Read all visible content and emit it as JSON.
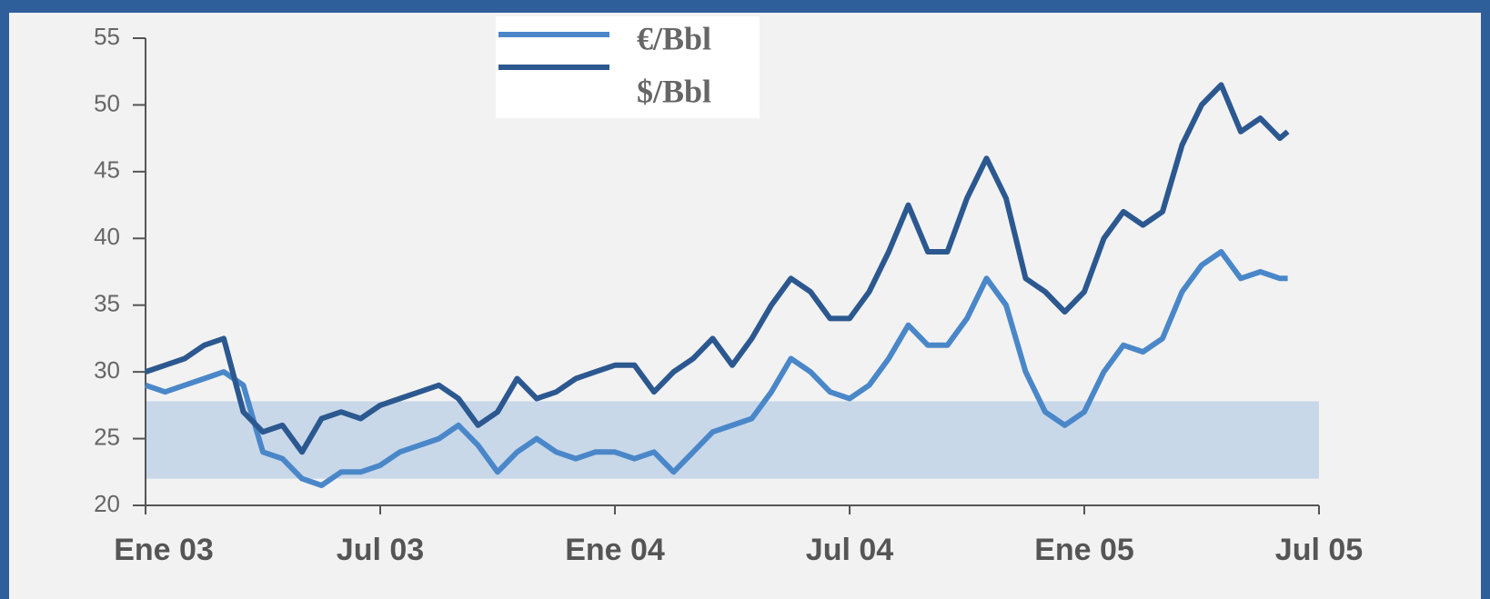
{
  "chart_data": {
    "type": "line",
    "x": [
      0,
      0.5,
      1,
      1.5,
      2,
      2.5,
      3,
      3.5,
      4,
      4.5,
      5,
      5.5,
      6,
      6.5,
      7,
      7.5,
      8,
      8.5,
      9,
      9.5,
      10,
      10.5,
      11,
      11.5,
      12,
      12.5,
      13,
      13.5,
      14,
      14.5,
      15,
      15.5,
      16,
      16.5,
      17,
      17.5,
      18,
      18.5,
      19,
      19.5,
      20,
      20.5,
      21,
      21.5,
      22,
      22.5,
      23,
      23.5,
      24,
      24.5,
      25,
      25.5,
      26,
      26.5,
      27,
      27.5,
      28,
      28.5,
      29,
      29.2
    ],
    "series": [
      {
        "name": "€/Bbl",
        "color": "#4a87c9",
        "values": [
          29,
          28.5,
          29,
          29.5,
          30,
          29,
          24,
          23.5,
          22,
          21.5,
          22.5,
          22.5,
          23,
          24,
          24.5,
          25,
          26,
          24.5,
          22.5,
          24,
          25,
          24,
          23.5,
          24,
          24,
          23.5,
          24,
          22.5,
          24,
          25.5,
          26,
          26.5,
          28.5,
          31,
          30,
          28.5,
          28,
          29,
          31,
          33.5,
          32,
          32,
          34,
          37,
          35,
          30,
          27,
          26,
          27,
          30,
          32,
          31.5,
          32.5,
          36,
          38,
          39,
          37,
          37.5,
          37,
          37
        ]
      },
      {
        "name": "$/Bbl",
        "color": "#2c5890",
        "values": [
          30,
          30.5,
          31,
          32,
          32.5,
          27,
          25.5,
          26,
          24,
          26.5,
          27,
          26.5,
          27.5,
          28,
          28.5,
          29,
          28,
          26,
          27,
          29.5,
          28,
          28.5,
          29.5,
          30,
          30.5,
          30.5,
          28.5,
          30,
          31,
          32.5,
          30.5,
          32.5,
          35,
          37,
          36,
          34,
          34,
          36,
          39,
          42.5,
          39,
          39,
          43,
          46,
          43,
          37,
          36,
          34.5,
          36,
          40,
          42,
          41,
          42,
          47,
          50,
          51.5,
          48,
          49,
          47.5,
          48
        ]
      }
    ],
    "xlim": [
      0,
      30
    ],
    "xticks": [
      {
        "value": 0,
        "label": "Ene 03"
      },
      {
        "value": 6,
        "label": "Jul 03"
      },
      {
        "value": 12,
        "label": "Ene 04"
      },
      {
        "value": 18,
        "label": "Jul 04"
      },
      {
        "value": 24,
        "label": "Ene 05"
      },
      {
        "value": 30,
        "label": "Jul 05"
      }
    ],
    "ylim": [
      20,
      55
    ],
    "yticks": [
      20,
      25,
      30,
      35,
      40,
      45,
      50,
      55
    ],
    "band": {
      "xlim": [
        0,
        30
      ],
      "ylim": [
        22,
        27.8
      ],
      "color": "#c8d8e9"
    }
  }
}
